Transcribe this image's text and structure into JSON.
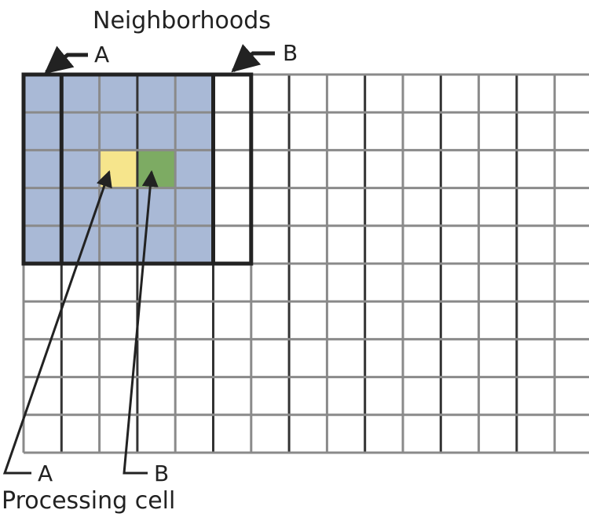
{
  "labels": {
    "top_title": "Neighborhoods",
    "top_a": "A",
    "top_b": "B",
    "bottom_a": "A",
    "bottom_b": "B",
    "bottom_title": "Processing cell"
  },
  "grid": {
    "columns": 15,
    "rows": 10
  },
  "neighborhoods": [
    {
      "label": "A",
      "first_col": 0,
      "first_row": 0,
      "cols": 5,
      "rows": 5
    },
    {
      "label": "B",
      "first_col": 1,
      "first_row": 0,
      "cols": 5,
      "rows": 5
    }
  ],
  "processing_cells": [
    {
      "label": "A",
      "col": 2,
      "row": 2
    },
    {
      "label": "B",
      "col": 3,
      "row": 2
    }
  ],
  "colors": {
    "neighborhood_fill": "#a9b9d6",
    "cell_a": "#f6e58c",
    "cell_b": "#7dab63",
    "grid_line": "#8a8a8a",
    "neighborhood_border": "#222222",
    "text": "#222222"
  }
}
